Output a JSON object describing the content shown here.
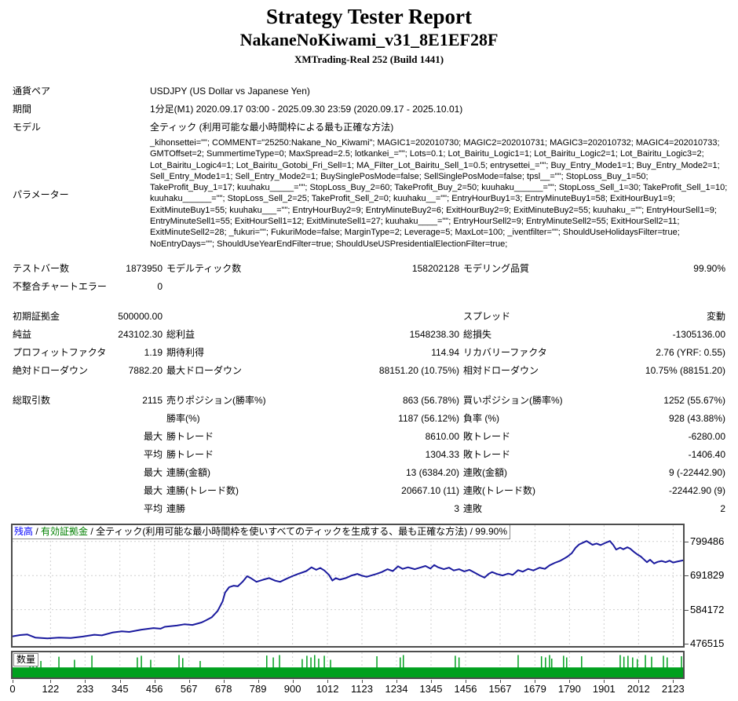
{
  "header": {
    "title": "Strategy Tester Report",
    "subtitle": "NakaneNoKiwami_v31_8E1EF28F",
    "server": "XMTrading-Real 252 (Build 1441)"
  },
  "info": {
    "rows": [
      {
        "label": "通貨ペア",
        "value": "USDJPY (US Dollar vs Japanese Yen)"
      },
      {
        "label": "期間",
        "value": "1分足(M1) 2020.09.17 03:00 - 2025.09.30 23:59 (2020.09.17 - 2025.10.01)"
      },
      {
        "label": "モデル",
        "value": "全ティック (利用可能な最小時間枠による最も正確な方法)"
      }
    ],
    "params_label": "パラメーター",
    "params_text": "_kihonsettei=\"\"; COMMENT=\"25250:Nakane_No_Kiwami\"; MAGIC1=202010730; MAGIC2=202010731; MAGIC3=202010732; MAGIC4=202010733; GMTOffset=2; SummertimeType=0; MaxSpread=2.5; lotkankei_=\"\"; Lots=0.1; Lot_Bairitu_Logic1=1; Lot_Bairitu_Logic2=1; Lot_Bairitu_Logic3=2; Lot_Bairitu_Logic4=1; Lot_Bairitu_Gotobi_Fri_Sell=1; MA_Filter_Lot_Bairitu_Sell_1=0.5; entrysettei_=\"\"; Buy_Entry_Mode1=1; Buy_Entry_Mode2=1; Sell_Entry_Mode1=1; Sell_Entry_Mode2=1; BuySinglePosMode=false; SellSinglePosMode=false; tpsl__=\"\"; StopLoss_Buy_1=50; TakeProfit_Buy_1=17; kuuhaku_____=\"\"; StopLoss_Buy_2=60; TakeProfit_Buy_2=50; kuuhaku______=\"\"; StopLoss_Sell_1=30; TakeProfit_Sell_1=10; kuuhaku______=\"\"; StopLoss_Sell_2=25; TakeProfit_Sell_2=0; kuuhaku__=\"\"; EntryHourBuy1=3; EntryMinuteBuy1=58; ExitHourBuy1=9; ExitMinuteBuy1=55; kuuhaku___=\"\"; EntryHourBuy2=9; EntryMinuteBuy2=6; ExitHourBuy2=9; ExitMinuteBuy2=55; kuuhaku_=\"\"; EntryHourSell1=9; EntryMinuteSell1=55; ExitHourSell1=12; ExitMinuteSell1=27; kuuhaku____=\"\"; EntryHourSell2=9; EntryMinuteSell2=55; ExitHourSell2=11; ExitMinuteSell2=28; _fukuri=\"\"; FukuriMode=false; MarginType=2; Leverage=5; MaxLot=100; _iventfilter=\"\"; ShouldUseHolidaysFilter=true; NoEntryDays=\"\"; ShouldUseYearEndFilter=true; ShouldUseUSPresidentialElectionFilter=true;"
  },
  "stats": {
    "rows": [
      {
        "cells": [
          "テストバー数",
          "1873950",
          "モデルティック数",
          "158202128",
          "モデリング品質",
          "99.90%"
        ]
      },
      {
        "cells": [
          "不整合チャートエラー",
          "0",
          "",
          "",
          "",
          ""
        ]
      },
      {
        "spacer": true
      },
      {
        "cells": [
          "初期証拠金",
          "500000.00",
          "",
          "",
          "スプレッド",
          "変動"
        ]
      },
      {
        "cells": [
          "純益",
          "243102.30",
          "総利益",
          "1548238.30",
          "総損失",
          "-1305136.00"
        ]
      },
      {
        "cells": [
          "プロフィットファクタ",
          "1.19",
          "期待利得",
          "114.94",
          "リカバリーファクタ",
          "2.76 (YRF: 0.55)"
        ]
      },
      {
        "cells": [
          "絶対ドローダウン",
          "7882.20",
          "最大ドローダウン",
          "88151.20 (10.75%)",
          "相対ドローダウン",
          "10.75% (88151.20)"
        ]
      },
      {
        "spacer": true
      },
      {
        "cells": [
          "総取引数",
          "2115",
          "売りポジション(勝率%)",
          "863 (56.78%)",
          "買いポジション(勝率%)",
          "1252 (55.67%)"
        ]
      },
      {
        "cells": [
          "",
          "",
          "勝率(%)",
          "1187 (56.12%)",
          "負率 (%)",
          "928 (43.88%)"
        ]
      },
      {
        "cells": [
          "",
          "最大",
          "勝トレード",
          "8610.00",
          "敗トレード",
          "-6280.00"
        ]
      },
      {
        "cells": [
          "",
          "平均",
          "勝トレード",
          "1304.33",
          "敗トレード",
          "-1406.40"
        ]
      },
      {
        "cells": [
          "",
          "最大",
          "連勝(金額)",
          "13 (6384.20)",
          "連敗(金額)",
          "9 (-22442.90)"
        ]
      },
      {
        "cells": [
          "",
          "最大",
          "連勝(トレード数)",
          "20667.10 (11)",
          "連敗(トレード数)",
          "-22442.90 (9)"
        ]
      },
      {
        "cells": [
          "",
          "平均",
          "連勝",
          "3",
          "連敗",
          "2"
        ]
      }
    ]
  },
  "chart": {
    "legend_parts": [
      {
        "text": "残高",
        "color": "#0000ff"
      },
      {
        "text": " / ",
        "color": "#000000"
      },
      {
        "text": "有効証拠金",
        "color": "#008000"
      },
      {
        "text": " / ",
        "color": "#000000"
      },
      {
        "text": "全ティック(利用可能な最小時間枠を使いすべてのティックを生成する、最も正確な方法) / 99.90%",
        "color": "#000000"
      }
    ],
    "volume_label": "数量",
    "colors": {
      "balance_line": "#1a1a9e",
      "volume": "#00a01e",
      "grid": "#cfcfcf",
      "frame": "#4d4d4d"
    }
  },
  "chart_data": {
    "type": "line",
    "series_name": "残高",
    "y_ticks": [
      799486,
      691829,
      584172,
      476515
    ],
    "x_ticks": [
      0,
      122,
      233,
      345,
      456,
      567,
      678,
      789,
      900,
      1012,
      1123,
      1234,
      1345,
      1456,
      1567,
      1679,
      1790,
      1901,
      2012,
      2123
    ],
    "x_max": 2155,
    "y_min": 469300,
    "y_max": 851000,
    "grid": true,
    "balance_curve": [
      [
        0,
        500000
      ],
      [
        24,
        504000
      ],
      [
        47,
        506000
      ],
      [
        73,
        496000
      ],
      [
        112,
        493500
      ],
      [
        149,
        496000
      ],
      [
        187,
        494500
      ],
      [
        224,
        499000
      ],
      [
        263,
        505000
      ],
      [
        287,
        503000
      ],
      [
        321,
        512000
      ],
      [
        351,
        516000
      ],
      [
        375,
        514000
      ],
      [
        414,
        521000
      ],
      [
        453,
        526000
      ],
      [
        476,
        524000
      ],
      [
        489,
        530000
      ],
      [
        528,
        534000
      ],
      [
        552,
        538000
      ],
      [
        578,
        536000
      ],
      [
        608,
        544000
      ],
      [
        621,
        550000
      ],
      [
        640,
        560000
      ],
      [
        659,
        580000
      ],
      [
        675,
        610000
      ],
      [
        683,
        638000
      ],
      [
        696,
        655000
      ],
      [
        711,
        660000
      ],
      [
        724,
        658000
      ],
      [
        739,
        672000
      ],
      [
        754,
        690000
      ],
      [
        767,
        683000
      ],
      [
        784,
        672000
      ],
      [
        806,
        679000
      ],
      [
        825,
        684000
      ],
      [
        843,
        676000
      ],
      [
        860,
        672000
      ],
      [
        881,
        682000
      ],
      [
        899,
        690000
      ],
      [
        918,
        697000
      ],
      [
        944,
        706000
      ],
      [
        961,
        718000
      ],
      [
        976,
        710000
      ],
      [
        989,
        716000
      ],
      [
        1002,
        708000
      ],
      [
        1017,
        694000
      ],
      [
        1028,
        676000
      ],
      [
        1039,
        684000
      ],
      [
        1052,
        679000
      ],
      [
        1071,
        684000
      ],
      [
        1090,
        692000
      ],
      [
        1108,
        697000
      ],
      [
        1121,
        692000
      ],
      [
        1138,
        688000
      ],
      [
        1153,
        692000
      ],
      [
        1170,
        697000
      ],
      [
        1187,
        703000
      ],
      [
        1205,
        712000
      ],
      [
        1222,
        706000
      ],
      [
        1239,
        721000
      ],
      [
        1254,
        713000
      ],
      [
        1271,
        718000
      ],
      [
        1293,
        712000
      ],
      [
        1310,
        717000
      ],
      [
        1327,
        722000
      ],
      [
        1343,
        714000
      ],
      [
        1355,
        725000
      ],
      [
        1368,
        718000
      ],
      [
        1386,
        712000
      ],
      [
        1403,
        717000
      ],
      [
        1418,
        708000
      ],
      [
        1435,
        712000
      ],
      [
        1452,
        705000
      ],
      [
        1468,
        710000
      ],
      [
        1487,
        700000
      ],
      [
        1502,
        692000
      ],
      [
        1517,
        685500
      ],
      [
        1530,
        697000
      ],
      [
        1541,
        703000
      ],
      [
        1556,
        697000
      ],
      [
        1575,
        692000
      ],
      [
        1593,
        698000
      ],
      [
        1608,
        694000
      ],
      [
        1625,
        709000
      ],
      [
        1640,
        704000
      ],
      [
        1657,
        713000
      ],
      [
        1674,
        708000
      ],
      [
        1694,
        717000
      ],
      [
        1711,
        713000
      ],
      [
        1726,
        724000
      ],
      [
        1743,
        732000
      ],
      [
        1759,
        738000
      ],
      [
        1772,
        745000
      ],
      [
        1784,
        752000
      ],
      [
        1797,
        762000
      ],
      [
        1810,
        780000
      ],
      [
        1821,
        790000
      ],
      [
        1834,
        796000
      ],
      [
        1845,
        801000
      ],
      [
        1856,
        794000
      ],
      [
        1864,
        789000
      ],
      [
        1877,
        793000
      ],
      [
        1890,
        788000
      ],
      [
        1903,
        794000
      ],
      [
        1920,
        801000
      ],
      [
        1931,
        788000
      ],
      [
        1940,
        774000
      ],
      [
        1953,
        780000
      ],
      [
        1963,
        775000
      ],
      [
        1976,
        781000
      ],
      [
        1985,
        777000
      ],
      [
        1998,
        766000
      ],
      [
        2009,
        758000
      ],
      [
        2019,
        752000
      ],
      [
        2028,
        744000
      ],
      [
        2039,
        734000
      ],
      [
        2049,
        742000
      ],
      [
        2062,
        730000
      ],
      [
        2073,
        735000
      ],
      [
        2086,
        738000
      ],
      [
        2099,
        734000
      ],
      [
        2112,
        739000
      ],
      [
        2123,
        733000
      ],
      [
        2136,
        736000
      ],
      [
        2155,
        740000
      ]
    ],
    "volume_base_frac": 0.4,
    "volume_spikes": [
      [
        56,
        0.92
      ],
      [
        66,
        0.78
      ],
      [
        78,
        0.95
      ],
      [
        91,
        0.7
      ],
      [
        149,
        0.88
      ],
      [
        199,
        0.75
      ],
      [
        255,
        0.93
      ],
      [
        401,
        0.85
      ],
      [
        414,
        0.92
      ],
      [
        444,
        0.75
      ],
      [
        535,
        0.95
      ],
      [
        547,
        0.82
      ],
      [
        603,
        0.7
      ],
      [
        817,
        0.93
      ],
      [
        838,
        0.85
      ],
      [
        858,
        0.95
      ],
      [
        931,
        0.78
      ],
      [
        946,
        0.92
      ],
      [
        959,
        0.85
      ],
      [
        971,
        0.95
      ],
      [
        984,
        0.8
      ],
      [
        1002,
        0.92
      ],
      [
        1022,
        0.75
      ],
      [
        1171,
        0.9
      ],
      [
        1246,
        0.85
      ],
      [
        1256,
        0.95
      ],
      [
        1423,
        0.92
      ],
      [
        1435,
        0.85
      ],
      [
        1625,
        0.95
      ],
      [
        1700,
        0.9
      ],
      [
        1713,
        0.85
      ],
      [
        1726,
        0.95
      ],
      [
        1733,
        0.8
      ],
      [
        1771,
        0.92
      ],
      [
        1781,
        0.85
      ],
      [
        1829,
        0.9
      ],
      [
        1953,
        0.95
      ],
      [
        1965,
        0.88
      ],
      [
        1978,
        0.92
      ],
      [
        1993,
        0.85
      ],
      [
        2008,
        0.78
      ],
      [
        2034,
        0.95
      ],
      [
        2054,
        0.88
      ],
      [
        2092,
        0.92
      ],
      [
        2104,
        0.85
      ],
      [
        2150,
        0.9
      ]
    ]
  }
}
